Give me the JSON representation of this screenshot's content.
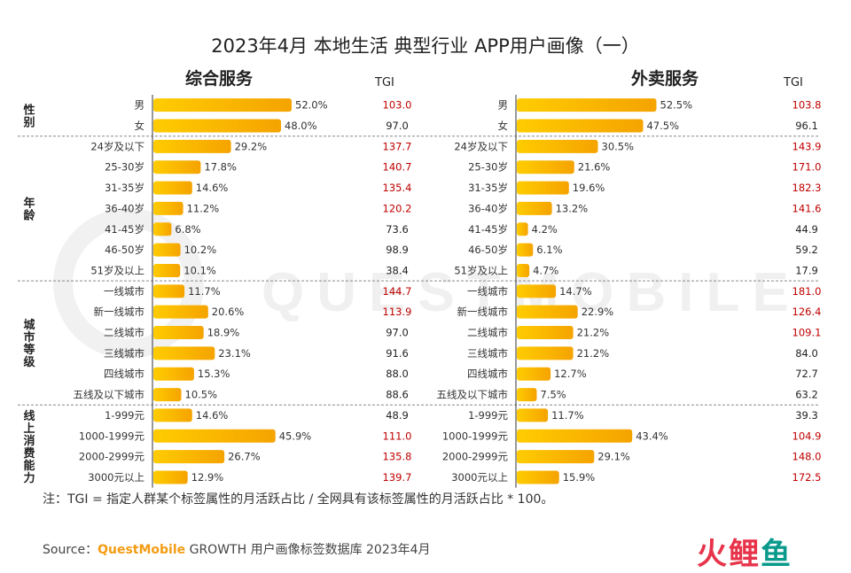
{
  "title": "2023年4月  本地生活 典型行业 APP用户画像（一）",
  "tgi_header": "TGI",
  "groups": [
    {
      "name": "性别",
      "count": 2
    },
    {
      "name": "年龄",
      "count": 7
    },
    {
      "name": "城市等级",
      "count": 6
    },
    {
      "name": "线上消费能力",
      "count": 4
    }
  ],
  "chart_data": [
    {
      "type": "bar",
      "title": "综合服务",
      "categories": [
        "男",
        "女",
        "24岁及以下",
        "25-30岁",
        "31-35岁",
        "36-40岁",
        "41-45岁",
        "46-50岁",
        "51岁及以上",
        "一线城市",
        "新一线城市",
        "二线城市",
        "三线城市",
        "四线城市",
        "五线及以下城市",
        "1-999元",
        "1000-1999元",
        "2000-2999元",
        "3000元以上"
      ],
      "values": [
        52.0,
        48.0,
        29.2,
        17.8,
        14.6,
        11.2,
        6.8,
        10.2,
        10.1,
        11.7,
        20.6,
        18.9,
        23.1,
        15.3,
        10.5,
        14.6,
        45.9,
        26.7,
        12.9
      ],
      "value_labels": [
        "52.0%",
        "48.0%",
        "29.2%",
        "17.8%",
        "14.6%",
        "11.2%",
        "6.8%",
        "10.2%",
        "10.1%",
        "11.7%",
        "20.6%",
        "18.9%",
        "23.1%",
        "15.3%",
        "10.5%",
        "14.6%",
        "45.9%",
        "26.7%",
        "12.9%"
      ],
      "tgi": [
        "103.0",
        "97.0",
        "137.7",
        "140.7",
        "135.4",
        "120.2",
        "73.6",
        "98.9",
        "38.4",
        "144.7",
        "113.9",
        "97.0",
        "91.6",
        "88.0",
        "88.6",
        "48.9",
        "111.0",
        "135.8",
        "139.7"
      ]
    },
    {
      "type": "bar",
      "title": "外卖服务",
      "categories": [
        "男",
        "女",
        "24岁及以下",
        "25-30岁",
        "31-35岁",
        "36-40岁",
        "41-45岁",
        "46-50岁",
        "51岁及以上",
        "一线城市",
        "新一线城市",
        "二线城市",
        "三线城市",
        "四线城市",
        "五线及以下城市",
        "1-999元",
        "1000-1999元",
        "2000-2999元",
        "3000元以上"
      ],
      "values": [
        52.5,
        47.5,
        30.5,
        21.6,
        19.6,
        13.2,
        4.2,
        6.1,
        4.7,
        14.7,
        22.9,
        21.2,
        21.2,
        12.7,
        7.5,
        11.7,
        43.4,
        29.1,
        15.9
      ],
      "value_labels": [
        "52.5%",
        "47.5%",
        "30.5%",
        "21.6%",
        "19.6%",
        "13.2%",
        "4.2%",
        "6.1%",
        "4.7%",
        "14.7%",
        "22.9%",
        "21.2%",
        "21.2%",
        "12.7%",
        "7.5%",
        "11.7%",
        "43.4%",
        "29.1%",
        "15.9%"
      ],
      "tgi": [
        "103.8",
        "96.1",
        "143.9",
        "171.0",
        "182.3",
        "141.6",
        "44.9",
        "59.2",
        "17.9",
        "181.0",
        "126.4",
        "109.1",
        "84.0",
        "72.7",
        "63.2",
        "39.3",
        "104.9",
        "148.0",
        "172.5"
      ]
    }
  ],
  "colors": {
    "bar_start": "#ffcc00",
    "bar_end": "#f5a300",
    "tgi_high": "#c00000",
    "tgi_normal": "#222222",
    "divider": "#888888"
  },
  "note": "注：TGI = 指定人群某个标签属性的月活跃占比 / 全网具有该标签属性的月活跃占比 * 100。",
  "source": {
    "prefix": "Source：",
    "brand": "QuestMobile",
    "rest": " GROWTH 用户画像标签数据库 2023年4月"
  },
  "watermark": "QUESTMOBILE",
  "logo": {
    "part1": "火",
    "part2": "鲤",
    "part3": "鱼"
  }
}
